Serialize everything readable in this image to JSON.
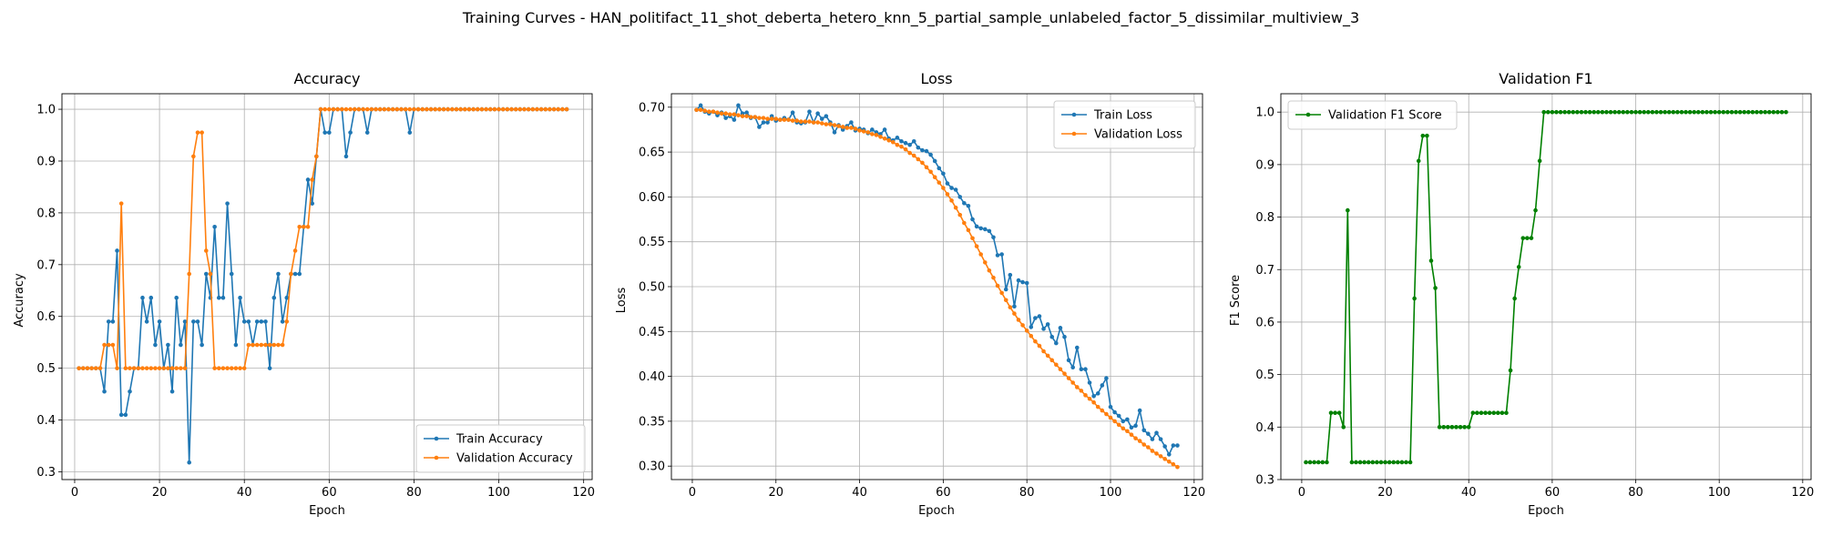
{
  "figure": {
    "suptitle": "Training Curves - HAN_politifact_11_shot_deberta_hetero_knn_5_partial_sample_unlabeled_factor_5_dissimilar_multiview_3"
  },
  "colors": {
    "blue": "#1f77b4",
    "orange": "#ff7f0e",
    "green": "#008000",
    "grid": "#b0b0b0"
  },
  "chart_data": [
    {
      "type": "line",
      "title": "Accuracy",
      "xlabel": "Epoch",
      "ylabel": "Accuracy",
      "xlim": [
        -3,
        122
      ],
      "ylim": [
        0.285,
        1.03
      ],
      "xticks": [
        0,
        20,
        40,
        60,
        80,
        100,
        120
      ],
      "yticks": [
        0.3,
        0.4,
        0.5,
        0.6,
        0.7,
        0.8,
        0.9,
        1.0
      ],
      "grid": true,
      "legend": "lower-right",
      "series": [
        {
          "name": "Train Accuracy",
          "color": "#1f77b4",
          "values": [
            0.5,
            0.5,
            0.5,
            0.5,
            0.5,
            0.5,
            0.455,
            0.59,
            0.59,
            0.727,
            0.41,
            0.41,
            0.455,
            0.5,
            0.5,
            0.636,
            0.59,
            0.636,
            0.545,
            0.59,
            0.5,
            0.545,
            0.455,
            0.636,
            0.545,
            0.59,
            0.318,
            0.59,
            0.59,
            0.545,
            0.682,
            0.636,
            0.773,
            0.636,
            0.636,
            0.818,
            0.682,
            0.545,
            0.636,
            0.59,
            0.59,
            0.545,
            0.59,
            0.59,
            0.59,
            0.5,
            0.636,
            0.682,
            0.59,
            0.636,
            0.682,
            0.682,
            0.682,
            0.773,
            0.864,
            0.818,
            0.909,
            1.0,
            0.955,
            0.955,
            1.0,
            1.0,
            1.0,
            0.909,
            0.955,
            1.0,
            1.0,
            1.0,
            0.955,
            1.0,
            1.0,
            1.0,
            1.0,
            1.0,
            1.0,
            1.0,
            1.0,
            1.0,
            0.955,
            1.0,
            1.0,
            1.0,
            1.0,
            1.0,
            1.0,
            1.0,
            1.0,
            1.0,
            1.0,
            1.0,
            1.0,
            1.0,
            1.0,
            1.0,
            1.0,
            1.0,
            1.0,
            1.0,
            1.0,
            1.0,
            1.0,
            1.0,
            1.0,
            1.0,
            1.0,
            1.0,
            1.0,
            1.0,
            1.0,
            1.0,
            1.0,
            1.0,
            1.0,
            1.0,
            1.0,
            1.0
          ]
        },
        {
          "name": "Validation Accuracy",
          "color": "#ff7f0e",
          "values": [
            0.5,
            0.5,
            0.5,
            0.5,
            0.5,
            0.5,
            0.545,
            0.545,
            0.545,
            0.5,
            0.818,
            0.5,
            0.5,
            0.5,
            0.5,
            0.5,
            0.5,
            0.5,
            0.5,
            0.5,
            0.5,
            0.5,
            0.5,
            0.5,
            0.5,
            0.5,
            0.682,
            0.909,
            0.955,
            0.955,
            0.727,
            0.682,
            0.5,
            0.5,
            0.5,
            0.5,
            0.5,
            0.5,
            0.5,
            0.5,
            0.545,
            0.545,
            0.545,
            0.545,
            0.545,
            0.545,
            0.545,
            0.545,
            0.545,
            0.59,
            0.682,
            0.727,
            0.773,
            0.773,
            0.773,
            0.864,
            0.909,
            1.0,
            1.0,
            1.0,
            1.0,
            1.0,
            1.0,
            1.0,
            1.0,
            1.0,
            1.0,
            1.0,
            1.0,
            1.0,
            1.0,
            1.0,
            1.0,
            1.0,
            1.0,
            1.0,
            1.0,
            1.0,
            1.0,
            1.0,
            1.0,
            1.0,
            1.0,
            1.0,
            1.0,
            1.0,
            1.0,
            1.0,
            1.0,
            1.0,
            1.0,
            1.0,
            1.0,
            1.0,
            1.0,
            1.0,
            1.0,
            1.0,
            1.0,
            1.0,
            1.0,
            1.0,
            1.0,
            1.0,
            1.0,
            1.0,
            1.0,
            1.0,
            1.0,
            1.0,
            1.0,
            1.0,
            1.0,
            1.0,
            1.0,
            1.0
          ]
        }
      ]
    },
    {
      "type": "line",
      "title": "Loss",
      "xlabel": "Epoch",
      "ylabel": "Loss",
      "xlim": [
        -5,
        122
      ],
      "ylim": [
        0.285,
        0.715
      ],
      "xticks": [
        0,
        20,
        40,
        60,
        80,
        100,
        120
      ],
      "yticks": [
        0.3,
        0.35,
        0.4,
        0.45,
        0.5,
        0.55,
        0.6,
        0.65,
        0.7
      ],
      "grid": true,
      "legend": "top-right",
      "series": [
        {
          "name": "Train Loss",
          "color": "#1f77b4",
          "values": [
            0.697,
            0.702,
            0.695,
            0.693,
            0.695,
            0.691,
            0.694,
            0.688,
            0.69,
            0.686,
            0.702,
            0.693,
            0.694,
            0.688,
            0.689,
            0.678,
            0.683,
            0.683,
            0.69,
            0.685,
            0.686,
            0.688,
            0.686,
            0.694,
            0.683,
            0.682,
            0.683,
            0.695,
            0.683,
            0.693,
            0.687,
            0.69,
            0.683,
            0.672,
            0.68,
            0.675,
            0.679,
            0.683,
            0.674,
            0.676,
            0.675,
            0.671,
            0.675,
            0.672,
            0.67,
            0.675,
            0.665,
            0.663,
            0.666,
            0.662,
            0.66,
            0.658,
            0.662,
            0.655,
            0.652,
            0.651,
            0.647,
            0.64,
            0.632,
            0.626,
            0.615,
            0.61,
            0.608,
            0.6,
            0.593,
            0.59,
            0.575,
            0.567,
            0.565,
            0.564,
            0.562,
            0.555,
            0.535,
            0.536,
            0.497,
            0.513,
            0.478,
            0.507,
            0.505,
            0.504,
            0.455,
            0.465,
            0.467,
            0.453,
            0.458,
            0.444,
            0.437,
            0.454,
            0.444,
            0.418,
            0.41,
            0.432,
            0.408,
            0.408,
            0.393,
            0.378,
            0.381,
            0.39,
            0.398,
            0.366,
            0.36,
            0.356,
            0.35,
            0.352,
            0.343,
            0.345,
            0.362,
            0.34,
            0.336,
            0.33,
            0.337,
            0.33,
            0.322,
            0.313,
            0.323,
            0.323
          ]
        },
        {
          "name": "Validation Loss",
          "color": "#ff7f0e",
          "values": [
            0.697,
            0.697,
            0.696,
            0.695,
            0.695,
            0.694,
            0.693,
            0.693,
            0.692,
            0.692,
            0.691,
            0.69,
            0.69,
            0.689,
            0.689,
            0.688,
            0.688,
            0.687,
            0.687,
            0.687,
            0.686,
            0.686,
            0.686,
            0.685,
            0.685,
            0.684,
            0.684,
            0.684,
            0.683,
            0.683,
            0.682,
            0.681,
            0.681,
            0.68,
            0.679,
            0.678,
            0.677,
            0.677,
            0.676,
            0.674,
            0.673,
            0.672,
            0.67,
            0.669,
            0.667,
            0.665,
            0.663,
            0.661,
            0.658,
            0.656,
            0.653,
            0.649,
            0.646,
            0.642,
            0.638,
            0.633,
            0.628,
            0.622,
            0.616,
            0.61,
            0.603,
            0.596,
            0.588,
            0.58,
            0.571,
            0.563,
            0.554,
            0.545,
            0.536,
            0.527,
            0.518,
            0.51,
            0.501,
            0.493,
            0.485,
            0.477,
            0.47,
            0.463,
            0.457,
            0.451,
            0.445,
            0.439,
            0.434,
            0.428,
            0.423,
            0.418,
            0.413,
            0.408,
            0.403,
            0.398,
            0.393,
            0.388,
            0.384,
            0.379,
            0.375,
            0.371,
            0.366,
            0.362,
            0.358,
            0.354,
            0.35,
            0.346,
            0.342,
            0.339,
            0.335,
            0.331,
            0.328,
            0.324,
            0.321,
            0.317,
            0.314,
            0.311,
            0.308,
            0.305,
            0.302,
            0.299
          ]
        }
      ]
    },
    {
      "type": "line",
      "title": "Validation F1",
      "xlabel": "Epoch",
      "ylabel": "F1 Score",
      "xlim": [
        -5,
        122
      ],
      "ylim": [
        0.3,
        1.035
      ],
      "xticks": [
        0,
        20,
        40,
        60,
        80,
        100,
        120
      ],
      "yticks": [
        0.3,
        0.4,
        0.5,
        0.6,
        0.7,
        0.8,
        0.9,
        1.0
      ],
      "grid": true,
      "legend": "top-left",
      "series": [
        {
          "name": "Validation F1 Score",
          "color": "#008000",
          "values": [
            0.333,
            0.333,
            0.333,
            0.333,
            0.333,
            0.333,
            0.427,
            0.427,
            0.427,
            0.4,
            0.813,
            0.333,
            0.333,
            0.333,
            0.333,
            0.333,
            0.333,
            0.333,
            0.333,
            0.333,
            0.333,
            0.333,
            0.333,
            0.333,
            0.333,
            0.333,
            0.645,
            0.907,
            0.955,
            0.955,
            0.717,
            0.665,
            0.4,
            0.4,
            0.4,
            0.4,
            0.4,
            0.4,
            0.4,
            0.4,
            0.427,
            0.427,
            0.427,
            0.427,
            0.427,
            0.427,
            0.427,
            0.427,
            0.427,
            0.508,
            0.645,
            0.705,
            0.76,
            0.76,
            0.76,
            0.813,
            0.907,
            1.0,
            1.0,
            1.0,
            1.0,
            1.0,
            1.0,
            1.0,
            1.0,
            1.0,
            1.0,
            1.0,
            1.0,
            1.0,
            1.0,
            1.0,
            1.0,
            1.0,
            1.0,
            1.0,
            1.0,
            1.0,
            1.0,
            1.0,
            1.0,
            1.0,
            1.0,
            1.0,
            1.0,
            1.0,
            1.0,
            1.0,
            1.0,
            1.0,
            1.0,
            1.0,
            1.0,
            1.0,
            1.0,
            1.0,
            1.0,
            1.0,
            1.0,
            1.0,
            1.0,
            1.0,
            1.0,
            1.0,
            1.0,
            1.0,
            1.0,
            1.0,
            1.0,
            1.0,
            1.0,
            1.0,
            1.0,
            1.0,
            1.0,
            1.0
          ]
        }
      ]
    }
  ]
}
